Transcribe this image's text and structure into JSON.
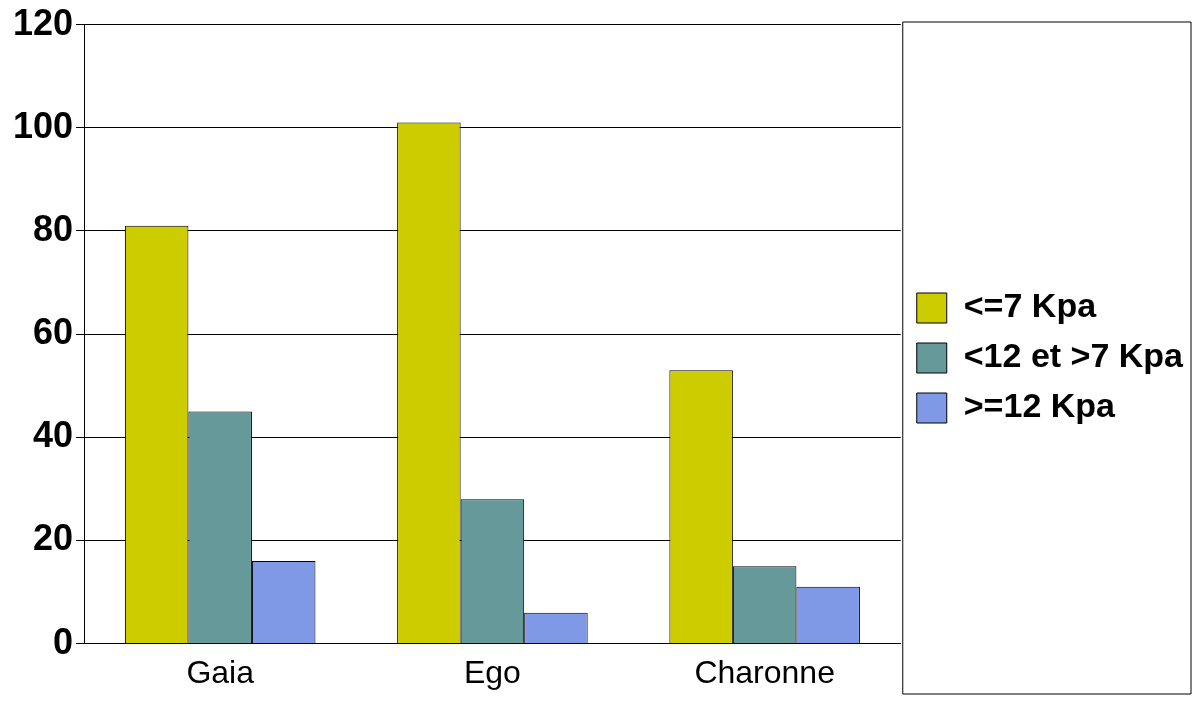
{
  "chart_data": {
    "type": "bar",
    "categories": [
      "Gaia",
      "Ego",
      "Charonne"
    ],
    "series": [
      {
        "name": "<=7 Kpa",
        "color": "#cccc00",
        "values": [
          81,
          101,
          53
        ]
      },
      {
        "name": "<12 et >7 Kpa",
        "color": "#669999",
        "values": [
          45,
          28,
          15
        ]
      },
      {
        "name": ">=12 Kpa",
        "color": "#8099e6",
        "values": [
          16,
          6,
          11
        ]
      }
    ],
    "ylim": [
      0,
      120
    ],
    "yticks": [
      0,
      20,
      40,
      60,
      80,
      100,
      120
    ],
    "grid": "y",
    "legend": "right"
  }
}
